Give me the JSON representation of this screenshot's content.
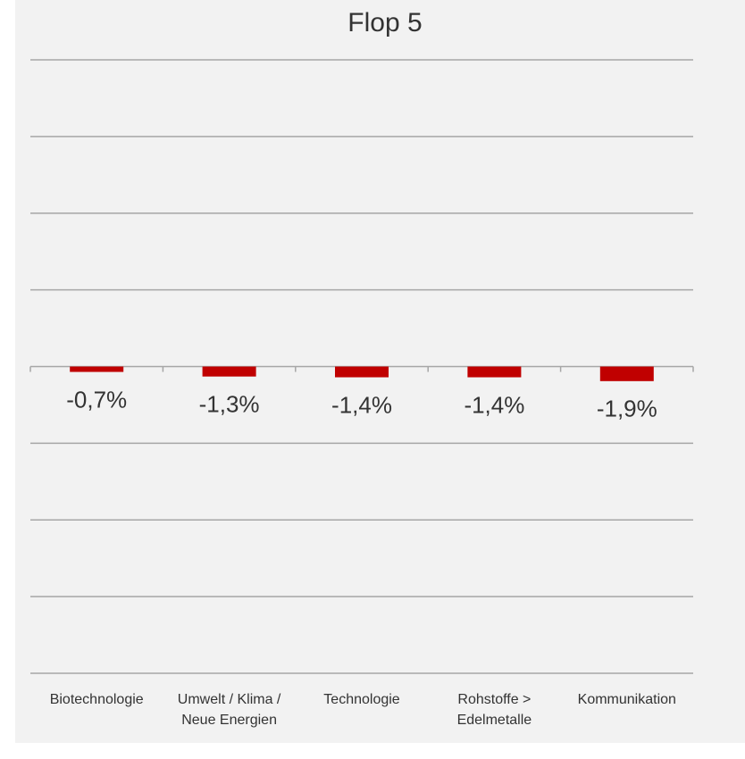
{
  "chart_data": {
    "type": "bar",
    "title": "Flop 5",
    "categories": [
      "Biotechnologie",
      "Umwelt / Klima / Neue Energien",
      "Technologie",
      "Rohstoffe > Edelmetalle",
      "Kommunikation"
    ],
    "values": [
      -0.7,
      -1.3,
      -1.4,
      -1.4,
      -1.9
    ],
    "value_labels": [
      "-0,7%",
      "-1,3%",
      "-1,4%",
      "-1,4%",
      "-1,9%"
    ],
    "color": "#c00000",
    "ylim": [
      -40,
      40
    ],
    "yticks": [
      -40,
      -30,
      -20,
      -10,
      0,
      10,
      20,
      30,
      40
    ],
    "grid": true
  }
}
